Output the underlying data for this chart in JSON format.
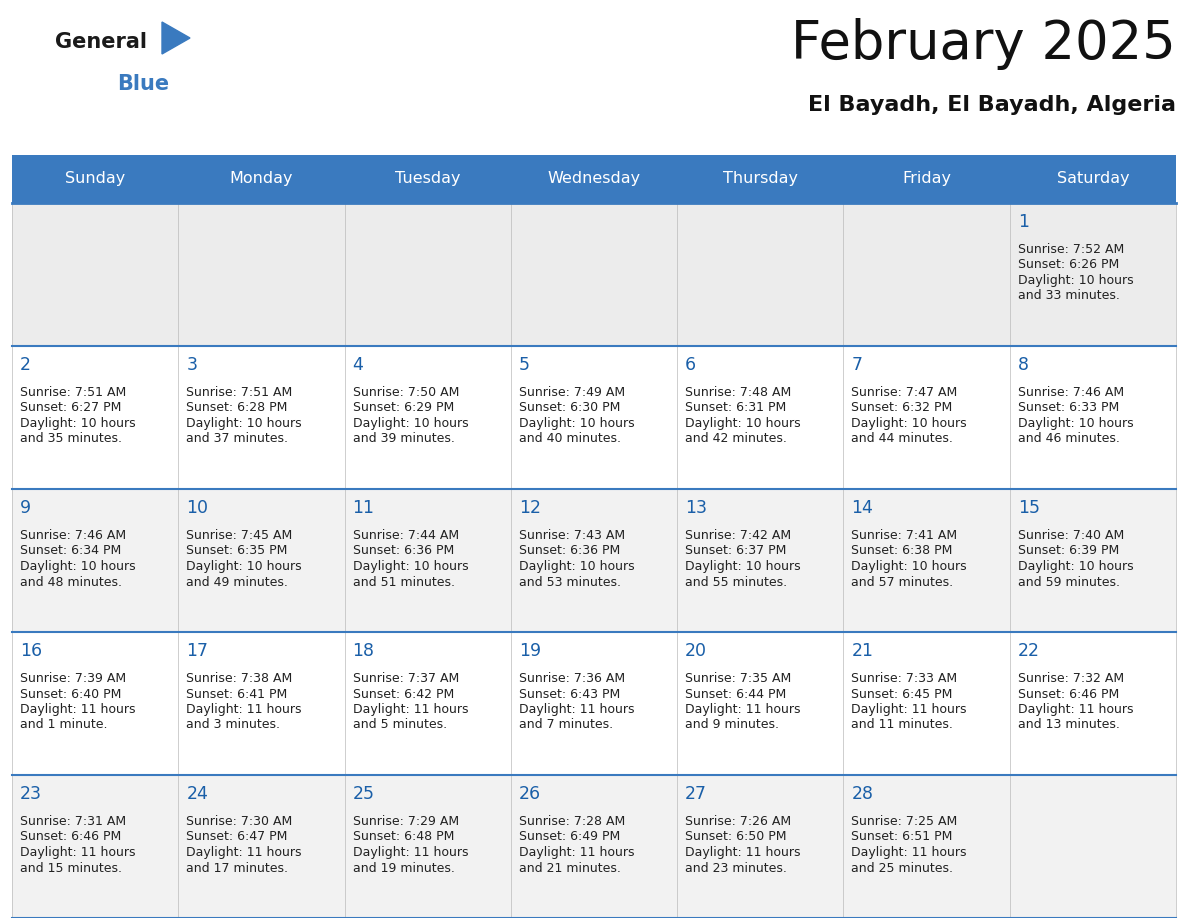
{
  "title": "February 2025",
  "subtitle": "El Bayadh, El Bayadh, Algeria",
  "header_color": "#3a7abf",
  "header_text_color": "#ffffff",
  "background_color": "#ffffff",
  "cell_bg_row0": "#ececec",
  "cell_bg_even": "#f2f2f2",
  "cell_bg_odd": "#ffffff",
  "day_names": [
    "Sunday",
    "Monday",
    "Tuesday",
    "Wednesday",
    "Thursday",
    "Friday",
    "Saturday"
  ],
  "title_color": "#111111",
  "subtitle_color": "#111111",
  "day_number_color": "#1a5fa8",
  "info_color": "#222222",
  "line_color": "#3a7abf",
  "logo_general_color": "#1a1a1a",
  "logo_blue_color": "#3a7abf",
  "calendar_data": [
    {
      "day": 1,
      "row": 0,
      "col": 6,
      "sunrise": "7:52 AM",
      "sunset": "6:26 PM",
      "daylight_a": "10 hours",
      "daylight_b": "and 33 minutes."
    },
    {
      "day": 2,
      "row": 1,
      "col": 0,
      "sunrise": "7:51 AM",
      "sunset": "6:27 PM",
      "daylight_a": "10 hours",
      "daylight_b": "and 35 minutes."
    },
    {
      "day": 3,
      "row": 1,
      "col": 1,
      "sunrise": "7:51 AM",
      "sunset": "6:28 PM",
      "daylight_a": "10 hours",
      "daylight_b": "and 37 minutes."
    },
    {
      "day": 4,
      "row": 1,
      "col": 2,
      "sunrise": "7:50 AM",
      "sunset": "6:29 PM",
      "daylight_a": "10 hours",
      "daylight_b": "and 39 minutes."
    },
    {
      "day": 5,
      "row": 1,
      "col": 3,
      "sunrise": "7:49 AM",
      "sunset": "6:30 PM",
      "daylight_a": "10 hours",
      "daylight_b": "and 40 minutes."
    },
    {
      "day": 6,
      "row": 1,
      "col": 4,
      "sunrise": "7:48 AM",
      "sunset": "6:31 PM",
      "daylight_a": "10 hours",
      "daylight_b": "and 42 minutes."
    },
    {
      "day": 7,
      "row": 1,
      "col": 5,
      "sunrise": "7:47 AM",
      "sunset": "6:32 PM",
      "daylight_a": "10 hours",
      "daylight_b": "and 44 minutes."
    },
    {
      "day": 8,
      "row": 1,
      "col": 6,
      "sunrise": "7:46 AM",
      "sunset": "6:33 PM",
      "daylight_a": "10 hours",
      "daylight_b": "and 46 minutes."
    },
    {
      "day": 9,
      "row": 2,
      "col": 0,
      "sunrise": "7:46 AM",
      "sunset": "6:34 PM",
      "daylight_a": "10 hours",
      "daylight_b": "and 48 minutes."
    },
    {
      "day": 10,
      "row": 2,
      "col": 1,
      "sunrise": "7:45 AM",
      "sunset": "6:35 PM",
      "daylight_a": "10 hours",
      "daylight_b": "and 49 minutes."
    },
    {
      "day": 11,
      "row": 2,
      "col": 2,
      "sunrise": "7:44 AM",
      "sunset": "6:36 PM",
      "daylight_a": "10 hours",
      "daylight_b": "and 51 minutes."
    },
    {
      "day": 12,
      "row": 2,
      "col": 3,
      "sunrise": "7:43 AM",
      "sunset": "6:36 PM",
      "daylight_a": "10 hours",
      "daylight_b": "and 53 minutes."
    },
    {
      "day": 13,
      "row": 2,
      "col": 4,
      "sunrise": "7:42 AM",
      "sunset": "6:37 PM",
      "daylight_a": "10 hours",
      "daylight_b": "and 55 minutes."
    },
    {
      "day": 14,
      "row": 2,
      "col": 5,
      "sunrise": "7:41 AM",
      "sunset": "6:38 PM",
      "daylight_a": "10 hours",
      "daylight_b": "and 57 minutes."
    },
    {
      "day": 15,
      "row": 2,
      "col": 6,
      "sunrise": "7:40 AM",
      "sunset": "6:39 PM",
      "daylight_a": "10 hours",
      "daylight_b": "and 59 minutes."
    },
    {
      "day": 16,
      "row": 3,
      "col": 0,
      "sunrise": "7:39 AM",
      "sunset": "6:40 PM",
      "daylight_a": "11 hours",
      "daylight_b": "and 1 minute."
    },
    {
      "day": 17,
      "row": 3,
      "col": 1,
      "sunrise": "7:38 AM",
      "sunset": "6:41 PM",
      "daylight_a": "11 hours",
      "daylight_b": "and 3 minutes."
    },
    {
      "day": 18,
      "row": 3,
      "col": 2,
      "sunrise": "7:37 AM",
      "sunset": "6:42 PM",
      "daylight_a": "11 hours",
      "daylight_b": "and 5 minutes."
    },
    {
      "day": 19,
      "row": 3,
      "col": 3,
      "sunrise": "7:36 AM",
      "sunset": "6:43 PM",
      "daylight_a": "11 hours",
      "daylight_b": "and 7 minutes."
    },
    {
      "day": 20,
      "row": 3,
      "col": 4,
      "sunrise": "7:35 AM",
      "sunset": "6:44 PM",
      "daylight_a": "11 hours",
      "daylight_b": "and 9 minutes."
    },
    {
      "day": 21,
      "row": 3,
      "col": 5,
      "sunrise": "7:33 AM",
      "sunset": "6:45 PM",
      "daylight_a": "11 hours",
      "daylight_b": "and 11 minutes."
    },
    {
      "day": 22,
      "row": 3,
      "col": 6,
      "sunrise": "7:32 AM",
      "sunset": "6:46 PM",
      "daylight_a": "11 hours",
      "daylight_b": "and 13 minutes."
    },
    {
      "day": 23,
      "row": 4,
      "col": 0,
      "sunrise": "7:31 AM",
      "sunset": "6:46 PM",
      "daylight_a": "11 hours",
      "daylight_b": "and 15 minutes."
    },
    {
      "day": 24,
      "row": 4,
      "col": 1,
      "sunrise": "7:30 AM",
      "sunset": "6:47 PM",
      "daylight_a": "11 hours",
      "daylight_b": "and 17 minutes."
    },
    {
      "day": 25,
      "row": 4,
      "col": 2,
      "sunrise": "7:29 AM",
      "sunset": "6:48 PM",
      "daylight_a": "11 hours",
      "daylight_b": "and 19 minutes."
    },
    {
      "day": 26,
      "row": 4,
      "col": 3,
      "sunrise": "7:28 AM",
      "sunset": "6:49 PM",
      "daylight_a": "11 hours",
      "daylight_b": "and 21 minutes."
    },
    {
      "day": 27,
      "row": 4,
      "col": 4,
      "sunrise": "7:26 AM",
      "sunset": "6:50 PM",
      "daylight_a": "11 hours",
      "daylight_b": "and 23 minutes."
    },
    {
      "day": 28,
      "row": 4,
      "col": 5,
      "sunrise": "7:25 AM",
      "sunset": "6:51 PM",
      "daylight_a": "11 hours",
      "daylight_b": "and 25 minutes."
    }
  ]
}
